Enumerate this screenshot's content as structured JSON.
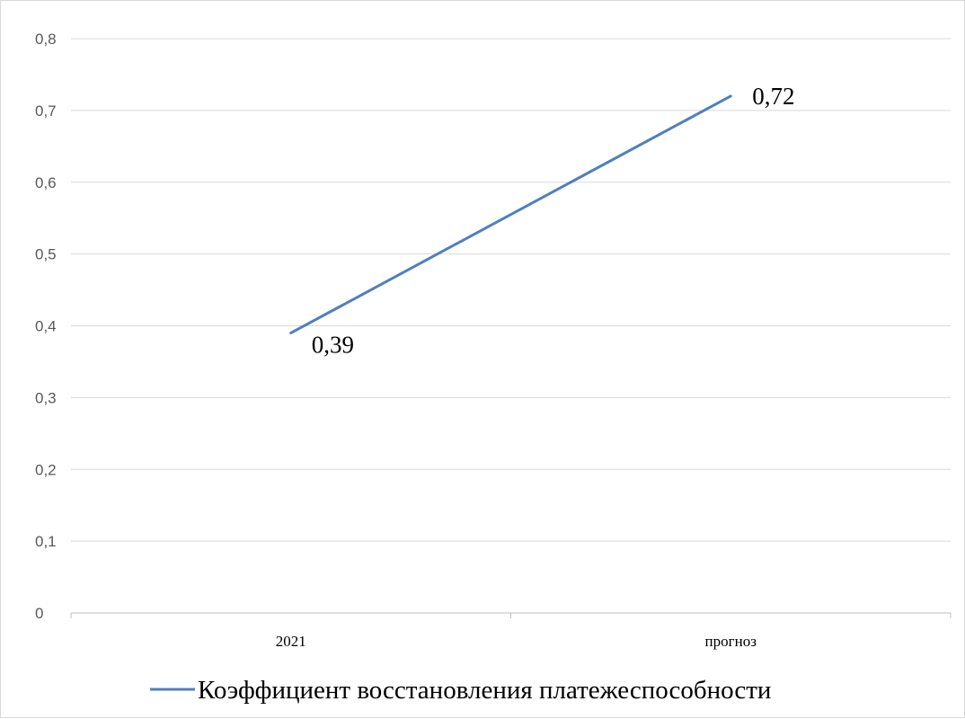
{
  "chart_data": {
    "type": "line",
    "categories": [
      "2021",
      "прогноз"
    ],
    "series": [
      {
        "name": "Коэффициент восстановления платежеспособности",
        "values": [
          0.39,
          0.72
        ],
        "data_labels": [
          "0,39",
          "0,72"
        ],
        "color": "#4f7fbf"
      }
    ],
    "y_ticks": [
      "0",
      "0,1",
      "0,2",
      "0,3",
      "0,4",
      "0,5",
      "0,6",
      "0,7",
      "0,8"
    ],
    "ylim": [
      0,
      0.8
    ],
    "grid": true,
    "legend_position": "bottom"
  }
}
